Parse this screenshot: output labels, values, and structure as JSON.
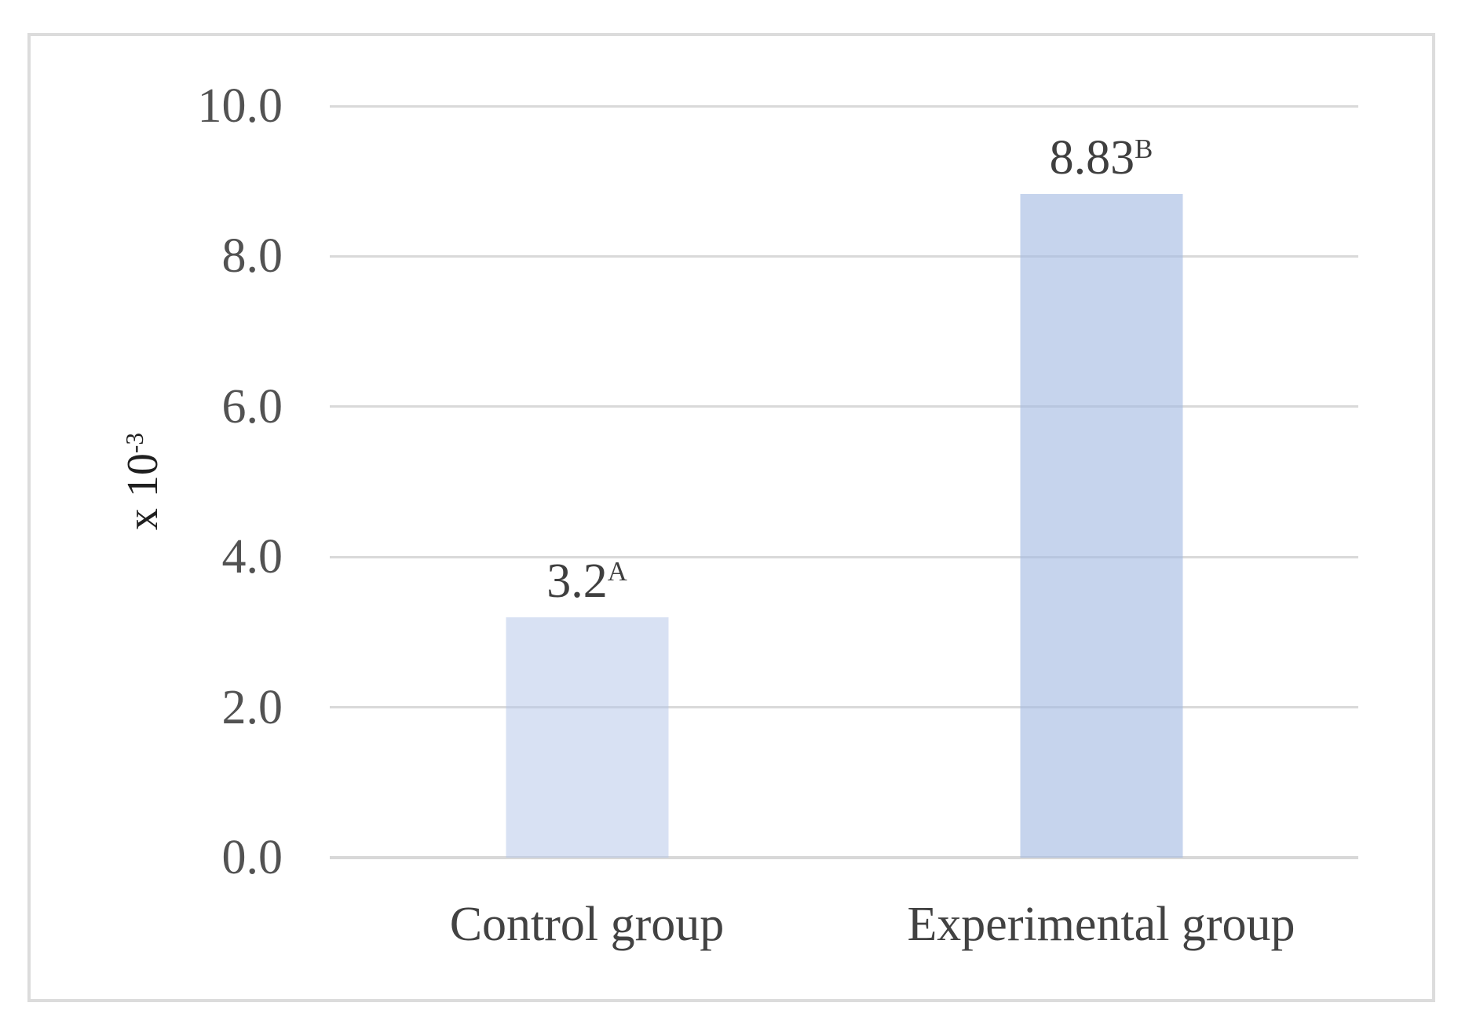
{
  "figure": {
    "border_color": "#dcdcdc",
    "background_color": "#ffffff"
  },
  "chart_data": {
    "type": "bar",
    "categories": [
      "Control group",
      "Experimental group"
    ],
    "values": [
      3.2,
      8.83
    ],
    "bar_labels": [
      {
        "value": "3.2",
        "superscript": "A"
      },
      {
        "value": "8.83",
        "superscript": "B"
      }
    ],
    "bar_fills": [
      "rgba(180,198,232,0.52)",
      "rgba(163,186,226,0.62)"
    ],
    "bar_fills_hex_on_white": [
      "#dbe3f3",
      "#c6d3ed"
    ],
    "title": "",
    "xlabel": "",
    "ylabel": {
      "base": "x 10",
      "superscript": "-3"
    },
    "ylim": [
      0,
      10
    ],
    "ytick_step": 2,
    "yticks": [
      "0.0",
      "2.0",
      "4.0",
      "6.0",
      "8.0",
      "10.0"
    ],
    "grid": "horizontal",
    "legend_position": "none",
    "gridline_color": "#d9d9d9",
    "axis_line_color": "#d8d8d8",
    "tick_label_color": "#525252",
    "category_label_color": "#424242",
    "data_label_color": "#3f3f3f",
    "y_axis_title_color": "#1f1f1f"
  }
}
